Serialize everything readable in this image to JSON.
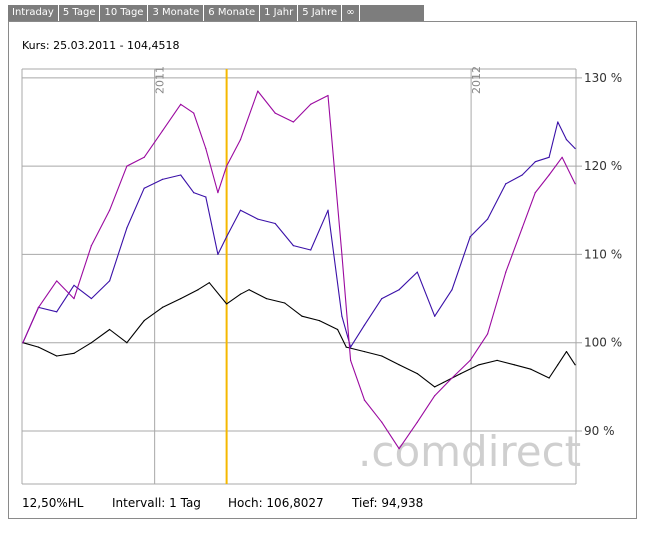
{
  "tabs": [
    "Intraday",
    "5 Tage",
    "10 Tage",
    "3 Monate",
    "6 Monate",
    "1 Jahr",
    "5 Jahre",
    "∞"
  ],
  "kurs": "Kurs: 25.03.2011 - 104,4518",
  "footer": {
    "hl": "12,50%HL",
    "intervall": "Intervall: 1 Tag",
    "hoch": "Hoch: 106,8027",
    "tief": "Tief:  94,938"
  },
  "watermark": ".comdirect",
  "colors": {
    "black_series": "#000000",
    "blue_series": "#3a10a8",
    "purple_series": "#9b0aa0",
    "marker": "#f5b800",
    "grid": "#a8a8a8"
  },
  "chart_data": {
    "type": "line",
    "x_range": [
      "2010-08",
      "2012-05"
    ],
    "y_range": [
      84,
      131
    ],
    "y_ticks": [
      {
        "value": 90,
        "label": "90 %"
      },
      {
        "value": 100,
        "label": "100 %"
      },
      {
        "value": 110,
        "label": "110 %"
      },
      {
        "value": 120,
        "label": "120 %"
      },
      {
        "value": 130,
        "label": "130 %"
      }
    ],
    "year_markers": [
      {
        "date": "2011-01-01",
        "label": "2011"
      },
      {
        "date": "2012-01-01",
        "label": "2012"
      }
    ],
    "marker_date": "2011-03-25",
    "grid": true,
    "series": [
      {
        "color": "#000000",
        "points": [
          [
            "2010-08-02",
            100
          ],
          [
            "2010-08-20",
            99.5
          ],
          [
            "2010-09-10",
            98.5
          ],
          [
            "2010-09-30",
            98.8
          ],
          [
            "2010-10-20",
            100
          ],
          [
            "2010-11-10",
            101.5
          ],
          [
            "2010-11-30",
            100
          ],
          [
            "2010-12-20",
            102.5
          ],
          [
            "2011-01-10",
            104
          ],
          [
            "2011-01-31",
            105
          ],
          [
            "2011-02-20",
            106
          ],
          [
            "2011-03-05",
            106.8
          ],
          [
            "2011-03-25",
            104.4
          ],
          [
            "2011-04-10",
            105.5
          ],
          [
            "2011-04-20",
            106
          ],
          [
            "2011-05-10",
            105
          ],
          [
            "2011-05-31",
            104.5
          ],
          [
            "2011-06-20",
            103
          ],
          [
            "2011-07-10",
            102.5
          ],
          [
            "2011-07-31",
            101.5
          ],
          [
            "2011-08-10",
            99.5
          ],
          [
            "2011-08-31",
            99
          ],
          [
            "2011-09-20",
            98.5
          ],
          [
            "2011-10-10",
            97.5
          ],
          [
            "2011-10-31",
            96.5
          ],
          [
            "2011-11-20",
            95
          ],
          [
            "2011-11-30",
            95.5
          ],
          [
            "2011-12-20",
            96.5
          ],
          [
            "2012-01-10",
            97.5
          ],
          [
            "2012-01-31",
            98
          ],
          [
            "2012-02-20",
            97.5
          ],
          [
            "2012-03-10",
            97
          ],
          [
            "2012-03-31",
            96
          ],
          [
            "2012-04-10",
            97.5
          ],
          [
            "2012-04-20",
            99
          ],
          [
            "2012-04-30",
            97.5
          ]
        ]
      },
      {
        "color": "#3a10a8",
        "points": [
          [
            "2010-08-02",
            100
          ],
          [
            "2010-08-20",
            104
          ],
          [
            "2010-09-10",
            103.5
          ],
          [
            "2010-09-30",
            106.5
          ],
          [
            "2010-10-20",
            105
          ],
          [
            "2010-11-10",
            107
          ],
          [
            "2010-11-30",
            113
          ],
          [
            "2010-12-20",
            117.5
          ],
          [
            "2011-01-10",
            118.5
          ],
          [
            "2011-01-31",
            119
          ],
          [
            "2011-02-15",
            117
          ],
          [
            "2011-03-01",
            116.5
          ],
          [
            "2011-03-15",
            110
          ],
          [
            "2011-03-25",
            112
          ],
          [
            "2011-04-10",
            115
          ],
          [
            "2011-04-30",
            114
          ],
          [
            "2011-05-20",
            113.5
          ],
          [
            "2011-06-10",
            111
          ],
          [
            "2011-06-30",
            110.5
          ],
          [
            "2011-07-20",
            115
          ],
          [
            "2011-08-05",
            103
          ],
          [
            "2011-08-15",
            99.5
          ],
          [
            "2011-08-31",
            102
          ],
          [
            "2011-09-20",
            105
          ],
          [
            "2011-10-10",
            106
          ],
          [
            "2011-10-31",
            108
          ],
          [
            "2011-11-20",
            103
          ],
          [
            "2011-12-10",
            106
          ],
          [
            "2011-12-31",
            112
          ],
          [
            "2012-01-20",
            114
          ],
          [
            "2012-02-10",
            118
          ],
          [
            "2012-02-29",
            119
          ],
          [
            "2012-03-15",
            120.5
          ],
          [
            "2012-03-31",
            121
          ],
          [
            "2012-04-10",
            125
          ],
          [
            "2012-04-20",
            123
          ],
          [
            "2012-04-30",
            122
          ]
        ]
      },
      {
        "color": "#9b0aa0",
        "points": [
          [
            "2010-08-02",
            100
          ],
          [
            "2010-08-20",
            104
          ],
          [
            "2010-09-10",
            107
          ],
          [
            "2010-09-30",
            105
          ],
          [
            "2010-10-20",
            111
          ],
          [
            "2010-11-10",
            115
          ],
          [
            "2010-11-30",
            120
          ],
          [
            "2010-12-20",
            121
          ],
          [
            "2011-01-10",
            124
          ],
          [
            "2011-01-31",
            127
          ],
          [
            "2011-02-15",
            126
          ],
          [
            "2011-03-01",
            122
          ],
          [
            "2011-03-15",
            117
          ],
          [
            "2011-03-25",
            120
          ],
          [
            "2011-04-10",
            123
          ],
          [
            "2011-04-30",
            128.5
          ],
          [
            "2011-05-20",
            126
          ],
          [
            "2011-06-10",
            125
          ],
          [
            "2011-06-30",
            127
          ],
          [
            "2011-07-20",
            128
          ],
          [
            "2011-08-05",
            110
          ],
          [
            "2011-08-15",
            98
          ],
          [
            "2011-08-31",
            93.5
          ],
          [
            "2011-09-20",
            91
          ],
          [
            "2011-10-10",
            88
          ],
          [
            "2011-10-31",
            91
          ],
          [
            "2011-11-20",
            94
          ],
          [
            "2011-12-10",
            96
          ],
          [
            "2011-12-31",
            98
          ],
          [
            "2012-01-20",
            101
          ],
          [
            "2012-02-10",
            108
          ],
          [
            "2012-02-29",
            113
          ],
          [
            "2012-03-15",
            117
          ],
          [
            "2012-03-31",
            119
          ],
          [
            "2012-04-15",
            121
          ],
          [
            "2012-04-30",
            118
          ]
        ]
      }
    ]
  }
}
